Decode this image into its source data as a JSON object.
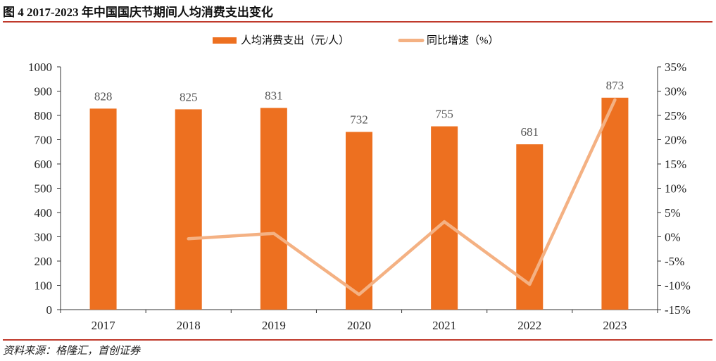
{
  "figure": {
    "title": "图 4 2017-2023 年中国国庆节期间人均消费支出变化",
    "source": "资料来源：格隆汇，首创证券"
  },
  "chart_data": {
    "type": "bar",
    "categories": [
      "2017",
      "2018",
      "2019",
      "2020",
      "2021",
      "2022",
      "2023"
    ],
    "series": [
      {
        "name": "人均消费支出（元/人）",
        "type": "bar",
        "axis": "left",
        "values": [
          828,
          825,
          831,
          732,
          755,
          681,
          873
        ],
        "color": "#ED7020"
      },
      {
        "name": "同比增速（%）",
        "type": "line",
        "axis": "right",
        "values": [
          null,
          -0.4,
          0.7,
          -11.9,
          3.1,
          -9.8,
          28.2
        ],
        "color": "#F4B183"
      }
    ],
    "yleft": {
      "min": 0,
      "max": 1000,
      "step": 100,
      "ticks": [
        "0",
        "100",
        "200",
        "300",
        "400",
        "500",
        "600",
        "700",
        "800",
        "900",
        "1000"
      ]
    },
    "yright": {
      "min": -15,
      "max": 35,
      "step": 5,
      "ticks": [
        "-15%",
        "-10%",
        "-5%",
        "0%",
        "5%",
        "10%",
        "15%",
        "20%",
        "25%",
        "30%",
        "35%"
      ]
    },
    "data_labels": [
      "828",
      "825",
      "831",
      "732",
      "755",
      "681",
      "873"
    ],
    "legend": {
      "position": "top"
    },
    "grid": false
  }
}
